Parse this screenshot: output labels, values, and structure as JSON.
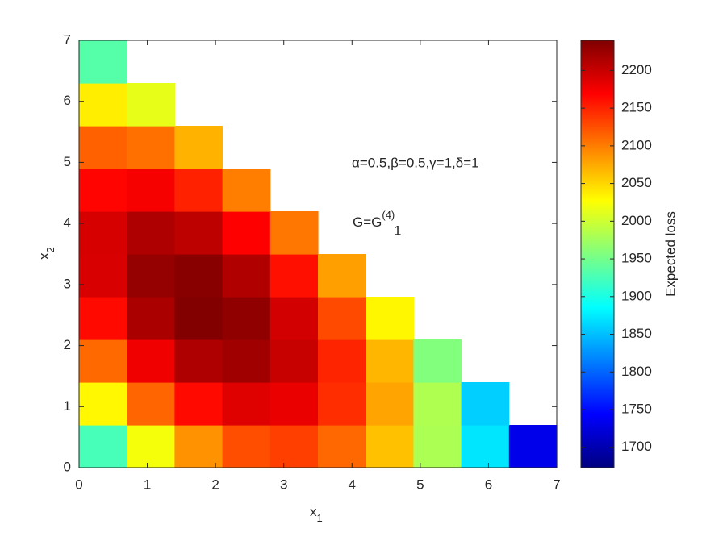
{
  "chart_data": {
    "type": "heatmap",
    "x_label": {
      "base": "x",
      "sub": "1"
    },
    "y_label": {
      "base": "x",
      "sub": "2"
    },
    "colorbar_label": "Expected loss",
    "annotations": [
      "α=0.5,β=0.5,γ=1,δ=1",
      {
        "base": "G=G",
        "sub": "1",
        "sup": "(4)"
      }
    ],
    "x": [
      0.35,
      1.05,
      1.75,
      2.45,
      3.15,
      3.85,
      4.55,
      5.25,
      5.95,
      6.65
    ],
    "y": [
      0.35,
      1.05,
      1.75,
      2.45,
      3.15,
      3.85,
      4.55,
      5.25,
      5.95,
      6.65
    ],
    "z": [
      [
        1925,
        2022,
        2088,
        2126,
        2134,
        2112,
        2062,
        1981,
        1872,
        1733
      ],
      [
        2031,
        2113,
        2164,
        2187,
        2180,
        2144,
        2078,
        1983,
        1859
      ],
      [
        2111,
        2177,
        2214,
        2222,
        2200,
        2149,
        2068,
        1958
      ],
      [
        2164,
        2216,
        2238,
        2230,
        2194,
        2128,
        2032
      ],
      [
        2191,
        2228,
        2235,
        2213,
        2161,
        2081
      ],
      [
        2192,
        2214,
        2206,
        2169,
        2103
      ],
      [
        2167,
        2174,
        2151,
        2099
      ],
      [
        2115,
        2107,
        2070
      ],
      [
        2037,
        2014
      ],
      [
        1933
      ]
    ],
    "colormap": "jet",
    "xlim": [
      0,
      7
    ],
    "ylim": [
      0,
      7
    ],
    "xticks": [
      0,
      1,
      2,
      3,
      4,
      5,
      6,
      7
    ],
    "yticks": [
      0,
      1,
      2,
      3,
      4,
      5,
      6,
      7
    ],
    "clim": [
      1673,
      2240
    ],
    "cticks": [
      1700,
      1750,
      1800,
      1850,
      1900,
      1950,
      2000,
      2050,
      2100,
      2150,
      2200
    ]
  }
}
